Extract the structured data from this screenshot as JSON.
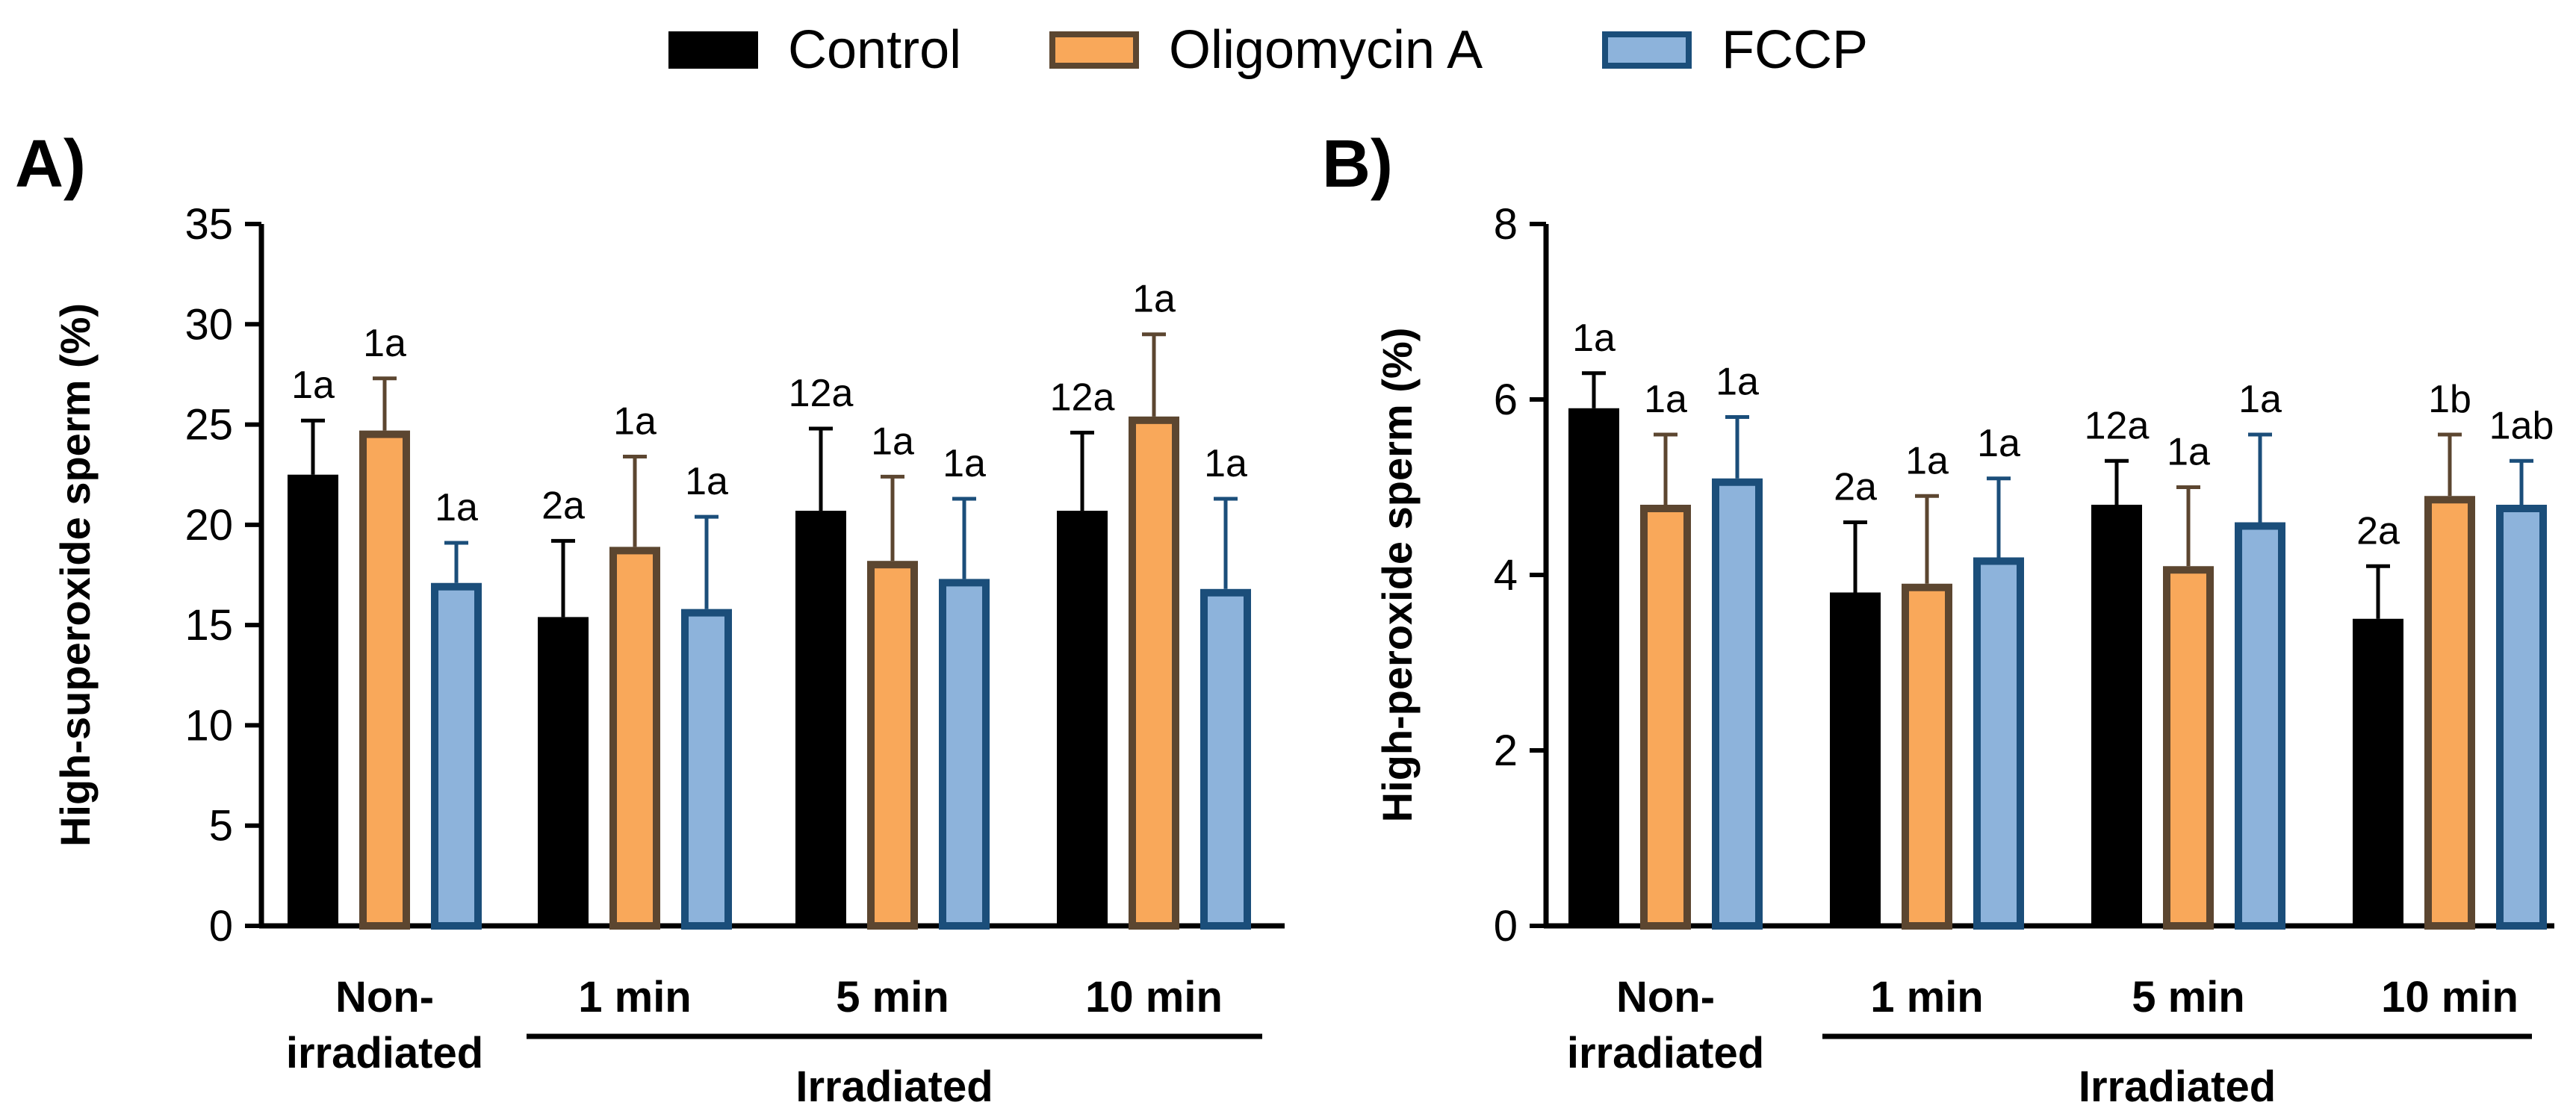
{
  "legend": [
    {
      "name": "Control",
      "fill": "#000000",
      "stroke": "#000000"
    },
    {
      "name": "Oligomycin A",
      "fill": "#F9A85A",
      "stroke": "#5C4630"
    },
    {
      "name": "FCCP",
      "fill": "#8DB3DB",
      "stroke": "#1B4E7A"
    }
  ],
  "colors": {
    "control_fill": "#000000",
    "control_stroke": "#000000",
    "oligo_fill": "#F9A85A",
    "oligo_stroke": "#5C4630",
    "fccp_fill": "#8DB3DB",
    "fccp_stroke": "#1B4E7A"
  },
  "chart_data": [
    {
      "type": "bar",
      "panel_label": "A)",
      "ylabel": "High-superoxide sperm (%)",
      "ylim": [
        0,
        35
      ],
      "yticks": [
        0,
        5,
        10,
        15,
        20,
        25,
        30,
        35
      ],
      "categories": [
        "Non-\nirradiated",
        "1 min",
        "5 min",
        "10 min"
      ],
      "group_label": "Irradiated",
      "series": [
        {
          "name": "Control",
          "values": [
            22.5,
            15.4,
            20.7,
            20.7
          ],
          "errors": [
            2.7,
            3.8,
            4.1,
            3.9
          ],
          "labels": [
            "1a",
            "2a",
            "12a",
            "12a"
          ]
        },
        {
          "name": "Oligomycin A",
          "values": [
            24.7,
            18.9,
            18.2,
            25.4
          ],
          "errors": [
            2.6,
            4.5,
            4.2,
            4.1
          ],
          "labels": [
            "1a",
            "1a",
            "1a",
            "1a"
          ]
        },
        {
          "name": "FCCP",
          "values": [
            17.1,
            15.8,
            17.3,
            16.8
          ],
          "errors": [
            2.0,
            4.6,
            4.0,
            4.5
          ],
          "labels": [
            "1a",
            "1a",
            "1a",
            "1a"
          ]
        }
      ]
    },
    {
      "type": "bar",
      "panel_label": "B)",
      "ylabel": "High-peroxide sperm (%)",
      "ylim": [
        0,
        8
      ],
      "yticks": [
        0,
        2,
        4,
        6,
        8
      ],
      "categories": [
        "Non-\nirradiated",
        "1 min",
        "5 min",
        "10 min"
      ],
      "group_label": "Irradiated",
      "series": [
        {
          "name": "Control",
          "values": [
            5.9,
            3.8,
            4.8,
            3.5
          ],
          "errors": [
            0.4,
            0.8,
            0.5,
            0.6
          ],
          "labels": [
            "1a",
            "2a",
            "12a",
            "2a"
          ]
        },
        {
          "name": "Oligomycin A",
          "values": [
            4.8,
            3.9,
            4.1,
            4.9
          ],
          "errors": [
            0.8,
            1.0,
            0.9,
            0.7
          ],
          "labels": [
            "1a",
            "1a",
            "1a",
            "1b"
          ]
        },
        {
          "name": "FCCP",
          "values": [
            5.1,
            4.2,
            4.6,
            4.8
          ],
          "errors": [
            0.7,
            0.9,
            1.0,
            0.5
          ],
          "labels": [
            "1a",
            "1a",
            "1a",
            "1ab"
          ]
        }
      ]
    }
  ]
}
